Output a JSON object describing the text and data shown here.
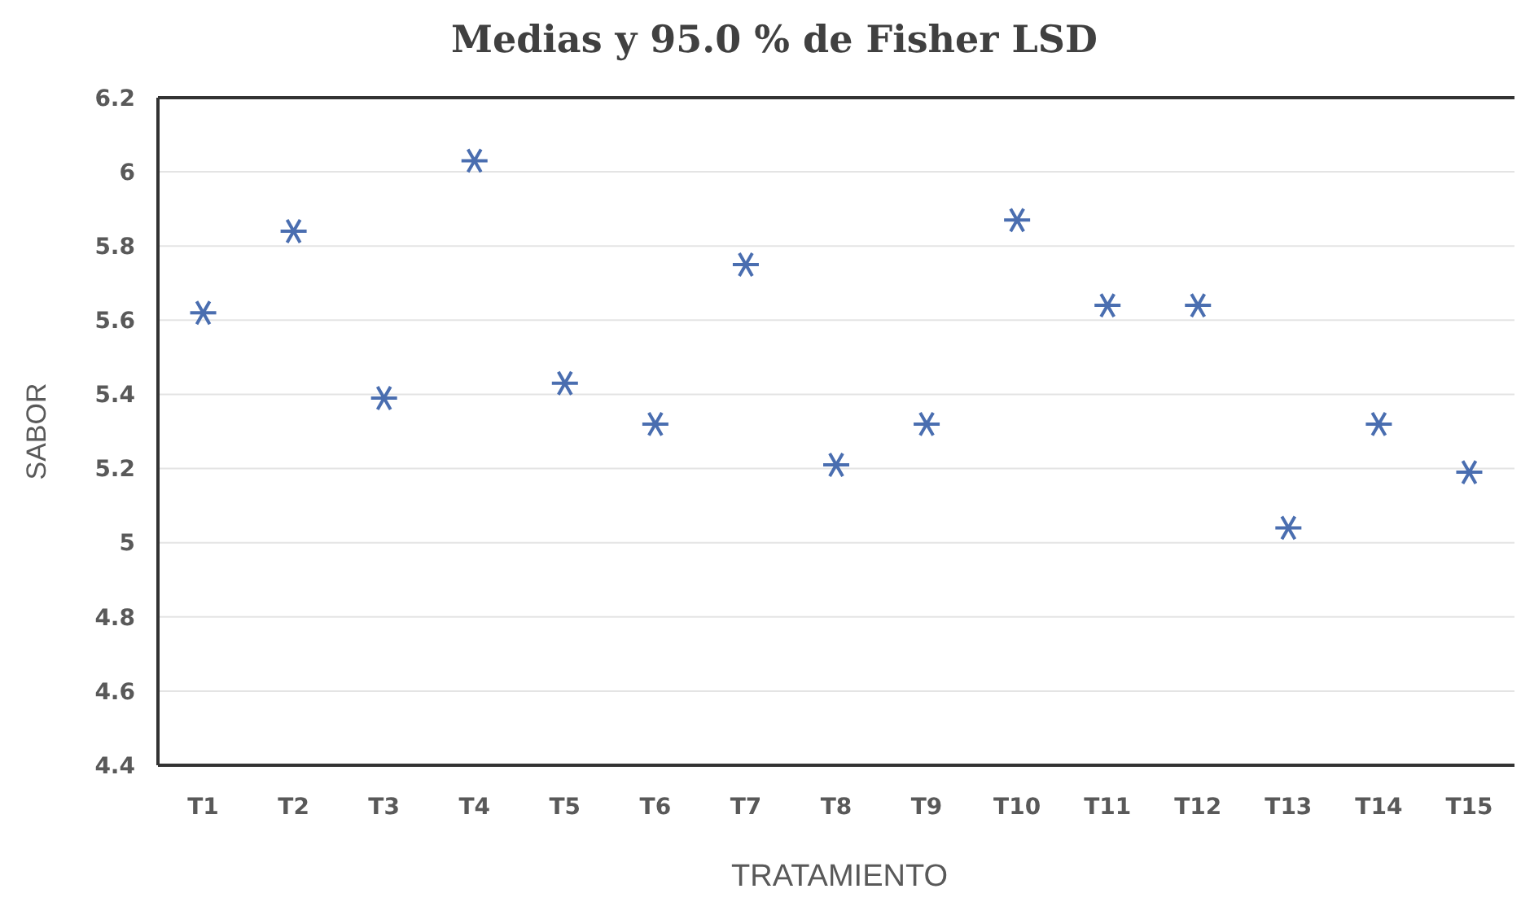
{
  "chart_data": {
    "type": "scatter",
    "title": "Medias y 95.0 % de Fisher LSD",
    "xlabel": "TRATAMIENTO",
    "ylabel": "SABOR",
    "categories": [
      "T1",
      "T2",
      "T3",
      "T4",
      "T5",
      "T6",
      "T7",
      "T8",
      "T9",
      "T10",
      "T11",
      "T12",
      "T13",
      "T14",
      "T15"
    ],
    "series": [
      {
        "color": "#4a6eb0",
        "values": [
          5.62,
          5.84,
          5.39,
          6.03,
          5.43,
          5.32,
          5.75,
          5.21,
          5.32,
          5.87,
          5.64,
          5.64,
          5.04,
          5.32,
          5.19
        ]
      }
    ],
    "ylim": [
      4.4,
      6.2
    ],
    "yticks": [
      4.4,
      4.6,
      4.8,
      5,
      5.2,
      5.4,
      5.6,
      5.8,
      6,
      6.2
    ],
    "grid": "y",
    "marker": "cross"
  }
}
